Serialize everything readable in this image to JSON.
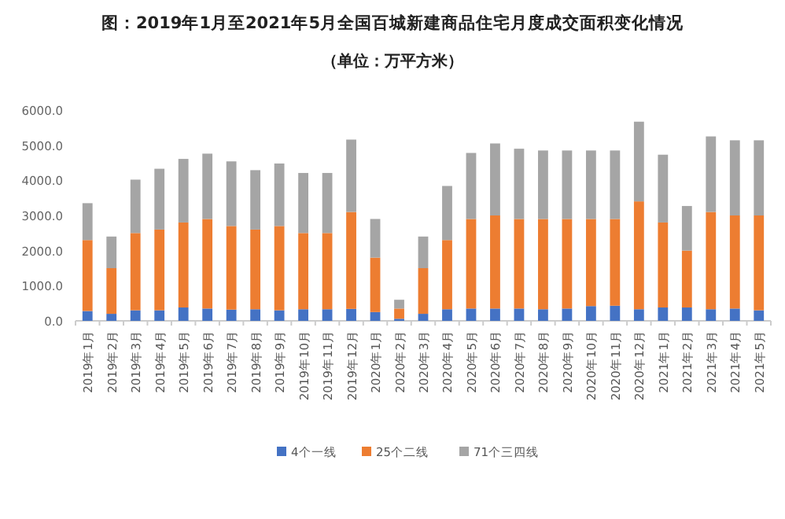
{
  "chart_data": {
    "type": "bar",
    "stacked": true,
    "title": "图：2019年1月至2021年5月全国百城新建商品住宅月度成交面积变化情况",
    "subtitle": "（单位：万平方米）",
    "categories": [
      "2019年1月",
      "2019年2月",
      "2019年3月",
      "2019年4月",
      "2019年5月",
      "2019年6月",
      "2019年7月",
      "2019年8月",
      "2019年9月",
      "2019年10月",
      "2019年11月",
      "2019年12月",
      "2020年1月",
      "2020年2月",
      "2020年3月",
      "2020年4月",
      "2020年5月",
      "2020年6月",
      "2020年7月",
      "2020年8月",
      "2020年9月",
      "2020年10月",
      "2020年11月",
      "2020年12月",
      "2021年1月",
      "2021年2月",
      "2021年3月",
      "2021年4月",
      "2021年5月"
    ],
    "series": [
      {
        "name": "4个一线",
        "color": "#4472c4",
        "values": [
          280,
          200,
          300,
          300,
          380,
          350,
          320,
          330,
          300,
          330,
          330,
          340,
          250,
          60,
          200,
          330,
          350,
          350,
          350,
          330,
          350,
          420,
          430,
          330,
          380,
          380,
          330,
          350,
          300
        ]
      },
      {
        "name": "25个二线",
        "color": "#ed7d31",
        "values": [
          2020,
          1300,
          2200,
          2300,
          2420,
          2550,
          2380,
          2270,
          2400,
          2170,
          2170,
          2760,
          1550,
          290,
          1300,
          1970,
          2550,
          2650,
          2550,
          2570,
          2550,
          2480,
          2470,
          3070,
          2420,
          1620,
          2770,
          2650,
          2700
        ]
      },
      {
        "name": "71个三四线",
        "color": "#a5a5a5",
        "values": [
          1050,
          900,
          1520,
          1730,
          1810,
          1860,
          1840,
          1690,
          1780,
          1710,
          1710,
          2060,
          1100,
          250,
          900,
          1540,
          1880,
          2050,
          2000,
          1950,
          1950,
          1950,
          1950,
          2270,
          1930,
          1270,
          2150,
          2140,
          2140
        ]
      }
    ],
    "ylim": [
      0,
      6000
    ],
    "yticks": [
      {
        "value": 0,
        "label": "0.0"
      },
      {
        "value": 1000,
        "label": "1000.0"
      },
      {
        "value": 2000,
        "label": "2000.0"
      },
      {
        "value": 3000,
        "label": "3000.0"
      },
      {
        "value": 4000,
        "label": "4000.0"
      },
      {
        "value": 5000,
        "label": "5000.0"
      },
      {
        "value": 6000,
        "label": "6000.0"
      }
    ],
    "legend": "bottom"
  }
}
